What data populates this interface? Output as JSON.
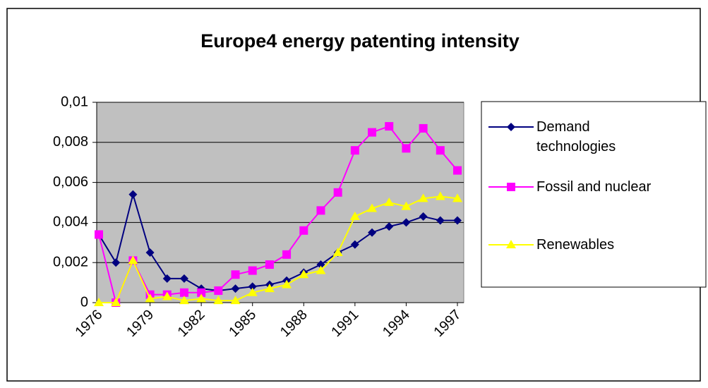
{
  "chart_data": {
    "type": "line",
    "title": "Europe4 energy patenting intensity",
    "categories": [
      "1976",
      null,
      null,
      "1979",
      null,
      null,
      "1982",
      null,
      null,
      "1985",
      null,
      null,
      "1988",
      null,
      null,
      "1991",
      null,
      null,
      "1994",
      null,
      null,
      "1997"
    ],
    "series": [
      {
        "name": "Demand technologies",
        "color": "#000080",
        "marker": "diamond",
        "values": [
          0.0034,
          0.002,
          0.0054,
          0.0025,
          0.0012,
          0.0012,
          0.0007,
          0.0006,
          0.0007,
          0.0008,
          0.0009,
          0.0011,
          0.0015,
          0.0019,
          0.0025,
          0.0029,
          0.0035,
          0.0038,
          0.004,
          0.0043,
          0.0041,
          0.0041
        ]
      },
      {
        "name": "Fossil and nuclear",
        "color": "#ff00ff",
        "marker": "square",
        "values": [
          0.0034,
          0,
          0.0021,
          0.0004,
          0.0004,
          0.0005,
          0.0005,
          0.0006,
          0.0014,
          0.0016,
          0.0019,
          0.0024,
          0.0036,
          0.0046,
          0.0055,
          0.0076,
          0.0085,
          0.0088,
          0.0077,
          0.0087,
          0.0076,
          0.0066
        ]
      },
      {
        "name": "Renewables",
        "color": "#ffff00",
        "marker": "triangle",
        "values": [
          0,
          0,
          0.0021,
          0.0002,
          0.0003,
          0.0001,
          0.0002,
          0.0001,
          0.0001,
          0.0005,
          0.0007,
          0.0009,
          0.0014,
          0.0016,
          0.0025,
          0.0043,
          0.0047,
          0.005,
          0.0048,
          0.0052,
          0.0053,
          0.0052
        ]
      }
    ],
    "ylim": [
      0,
      0.01
    ],
    "yticks": [
      0,
      {
        "value": 0.002,
        "label": "0,002"
      },
      {
        "value": 0.004,
        "label": "0,004"
      },
      {
        "value": 0.006,
        "label": "0,006"
      },
      {
        "value": 0.008,
        "label": "0,008"
      },
      {
        "value": 0.01,
        "label": "0,01"
      }
    ],
    "grid": true,
    "plot_background": "#c0c0c0",
    "legend": "right"
  }
}
